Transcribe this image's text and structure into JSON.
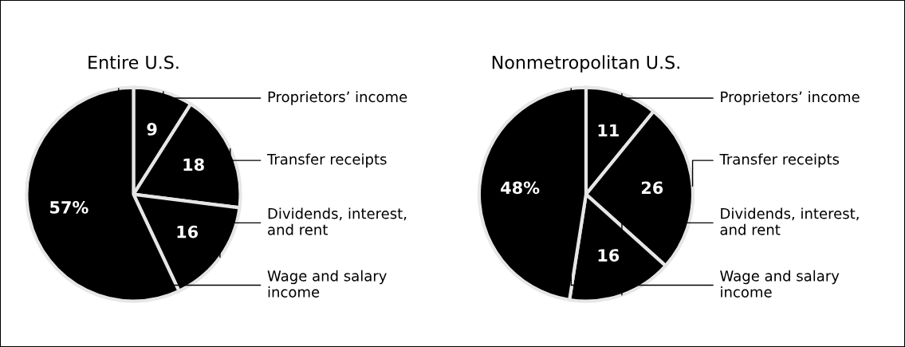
{
  "chart_data": [
    {
      "type": "pie",
      "title": "Entire U.S.",
      "categories": [
        "Proprietors’ income",
        "Transfer receipts",
        "Dividends, interest,\nand rent",
        "Wage and salary\nincome"
      ],
      "values": [
        9,
        18,
        16,
        57
      ],
      "colors": [
        "#000000",
        "#000000",
        "#000000",
        "#000000"
      ],
      "value_labels": [
        "9",
        "18",
        "16",
        "57%"
      ]
    },
    {
      "type": "pie",
      "title": "Nonmetropolitan U.S.",
      "categories": [
        "Proprietors’ income",
        "Transfer receipts",
        "Dividends, interest,\nand rent",
        "Wage and salary\nincome"
      ],
      "values": [
        11,
        26,
        16,
        48
      ],
      "colors": [
        "#000000",
        "#000000",
        "#000000",
        "#000000"
      ],
      "value_labels": [
        "11",
        "26",
        "16",
        "48%"
      ]
    }
  ]
}
